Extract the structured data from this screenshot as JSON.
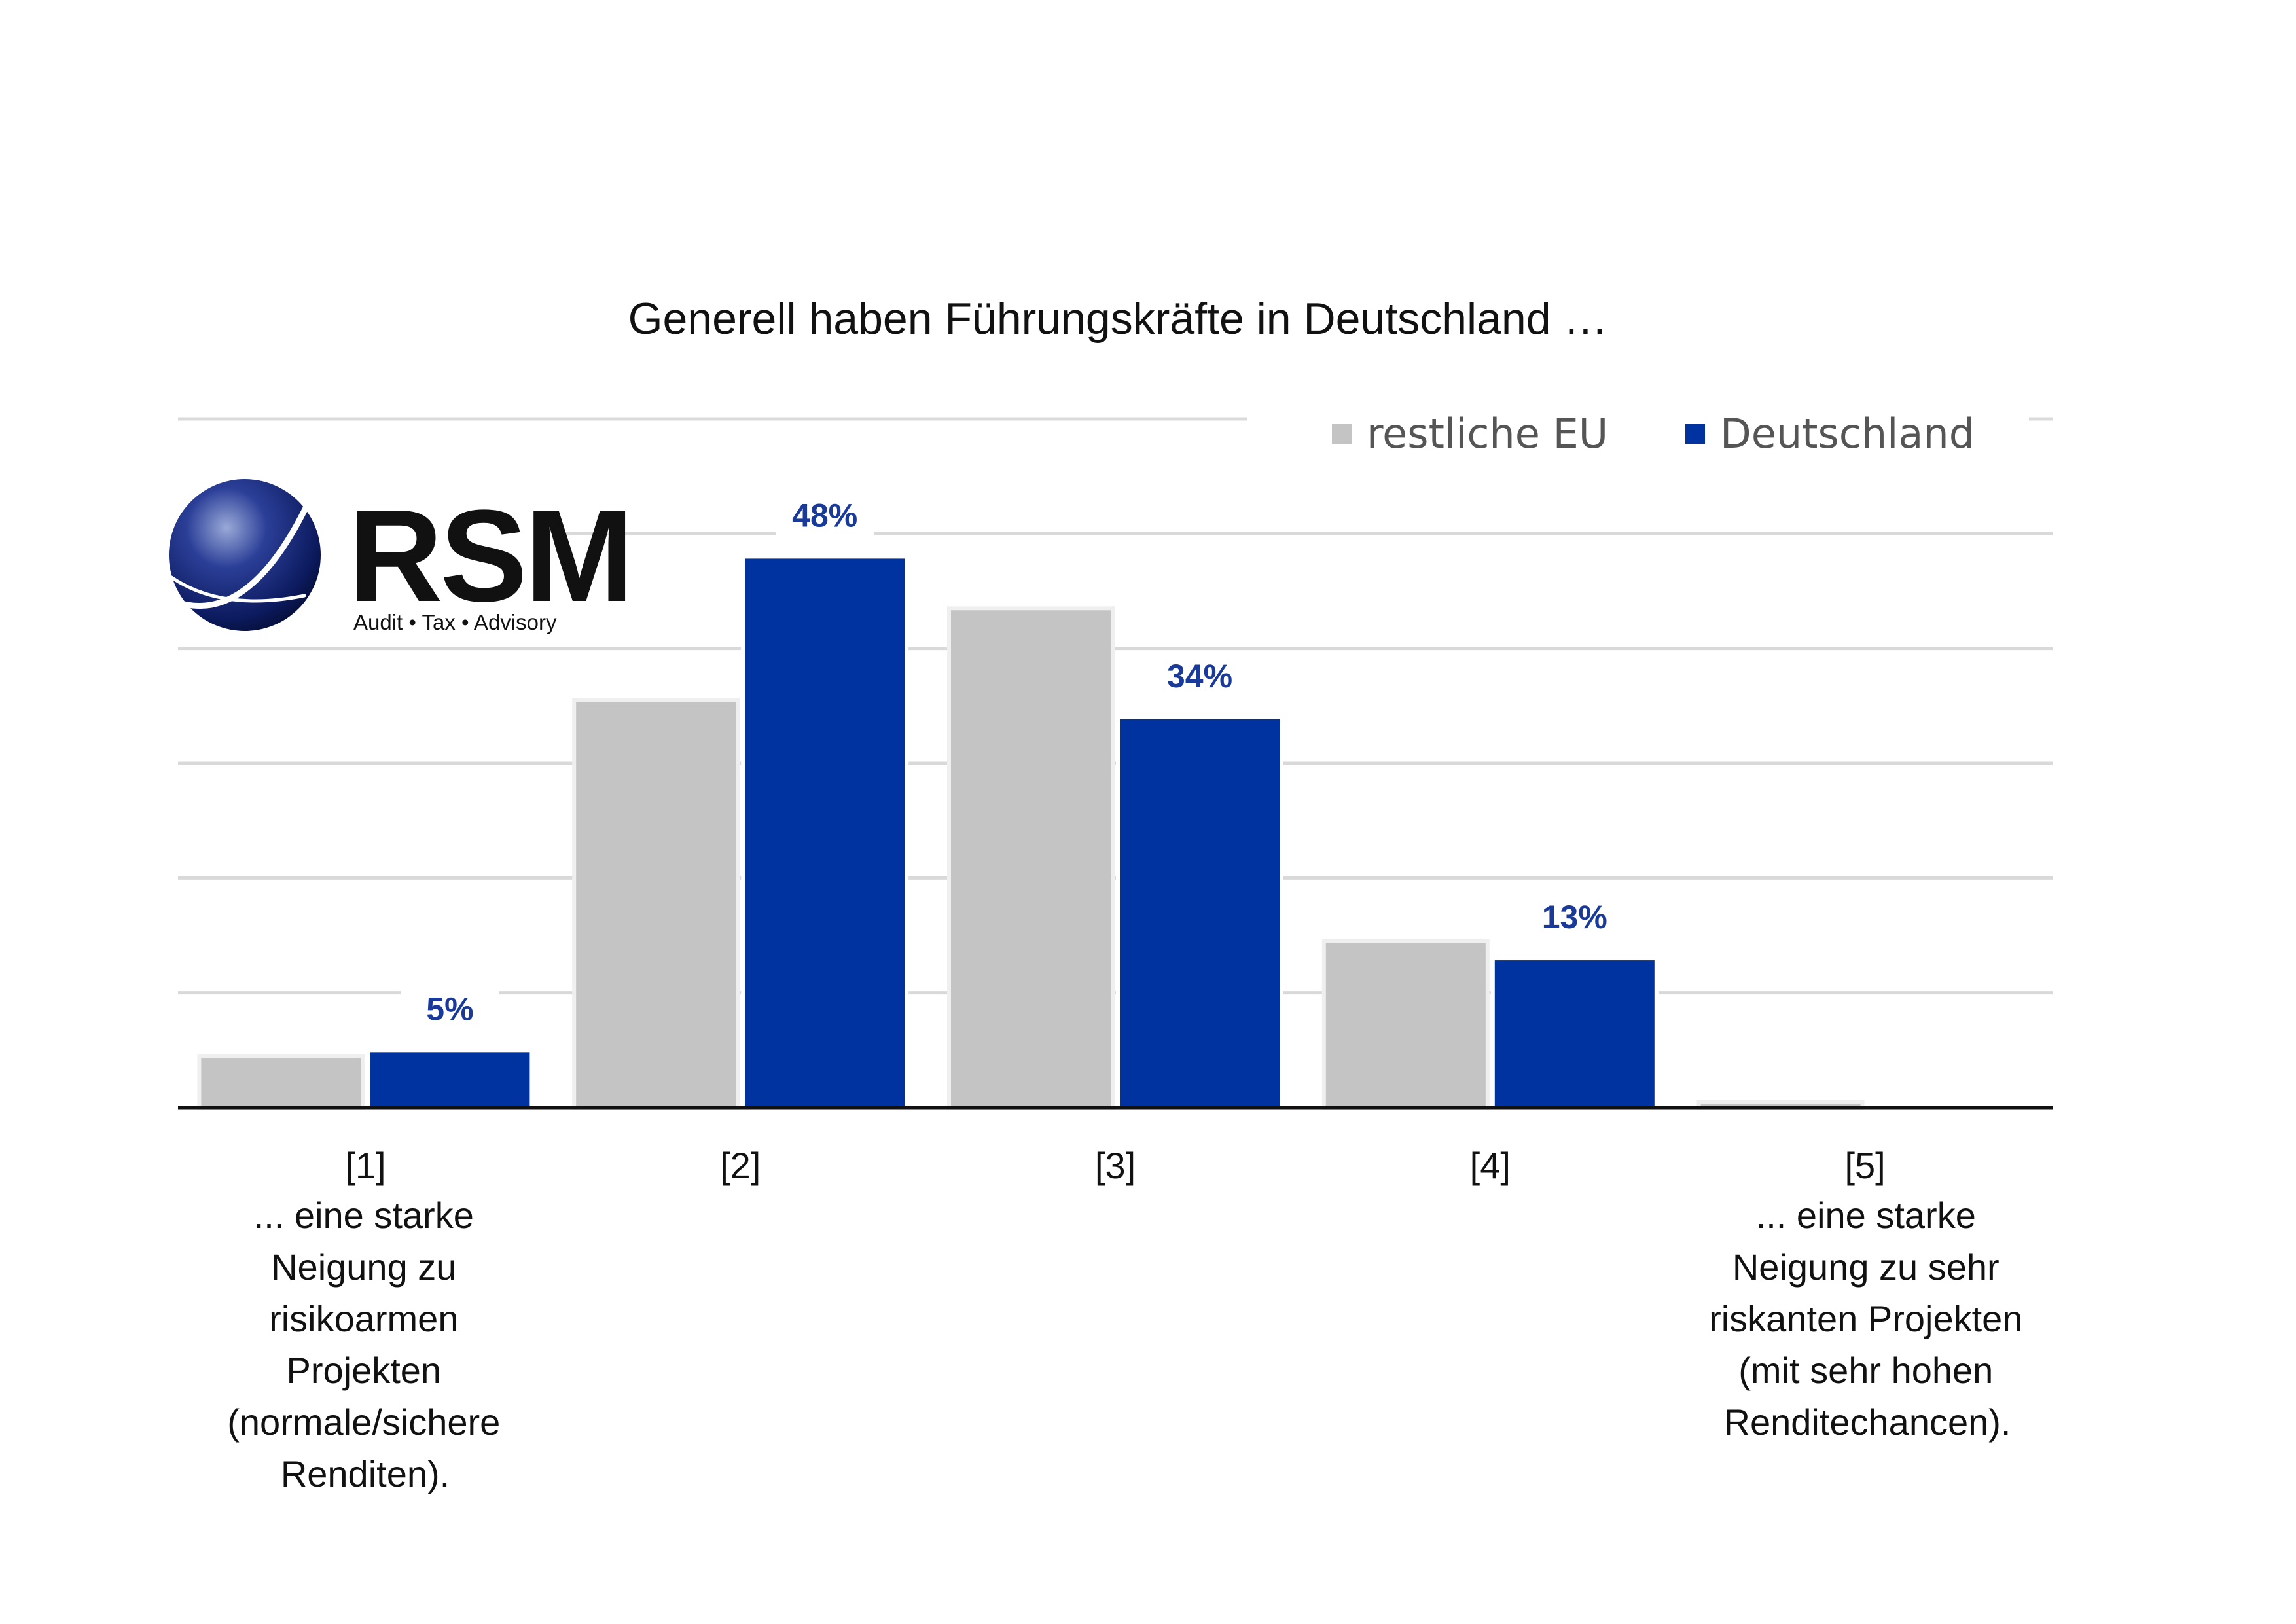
{
  "chart_data": {
    "type": "bar",
    "title": "Generell haben Führungskräfte in Deutschland …",
    "categories": [
      "[1]",
      "[2]",
      "[3]",
      "[4]",
      "[5]"
    ],
    "series": [
      {
        "name": "restliche EU",
        "color": "#c4c4c4",
        "values": [
          4.5,
          35.5,
          43.5,
          14.5,
          0.5
        ]
      },
      {
        "name": "Deutschland",
        "color": "#0033a0",
        "values": [
          5,
          48,
          34,
          13,
          0
        ]
      }
    ],
    "data_labels": {
      "Deutschland": [
        "5%",
        "48%",
        "34%",
        "13%",
        ""
      ]
    },
    "ylim": [
      0,
      60
    ],
    "grid": true,
    "legend_position": "top-right",
    "category_descriptions": {
      "first": [
        "... eine starke",
        "Neigung zu",
        "risikoarmen",
        "Projekten",
        "(normale/sichere",
        "Renditen)."
      ],
      "last": [
        "... eine starke",
        "Neigung zu sehr",
        "riskanten Projekten",
        "(mit sehr hohen",
        "Renditechancen)."
      ]
    }
  },
  "logo": {
    "name": "RSM",
    "tagline": "Audit • Tax • Advisory"
  }
}
